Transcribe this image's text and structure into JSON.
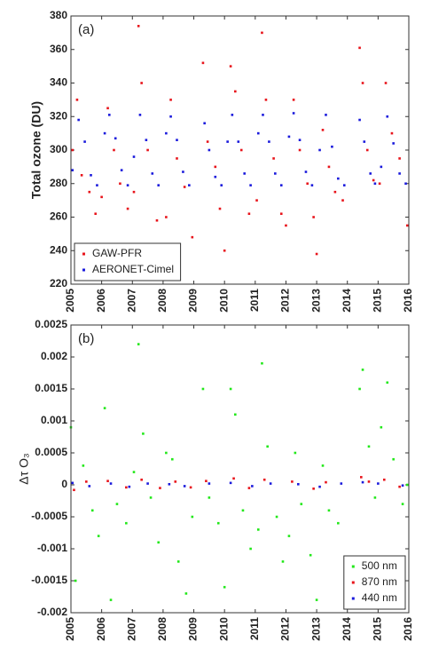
{
  "chart_data": [
    {
      "type": "scatter",
      "annotation": "(a)",
      "ylabel": "Total ozone (DU)",
      "xlim": [
        2005,
        2016
      ],
      "xticks": [
        2005,
        2006,
        2007,
        2008,
        2009,
        2010,
        2011,
        2012,
        2013,
        2014,
        2015,
        2016
      ],
      "ylim": [
        220,
        380
      ],
      "yticks": [
        220,
        240,
        260,
        280,
        300,
        320,
        340,
        360,
        380
      ],
      "legend": "lower left",
      "series": [
        {
          "name": "GAW-PFR",
          "color": "#e8141b",
          "x": [
            2005.05,
            2005.2,
            2005.35,
            2005.6,
            2005.8,
            2006.0,
            2006.2,
            2006.4,
            2006.6,
            2006.85,
            2007.05,
            2007.2,
            2007.3,
            2007.5,
            2007.8,
            2008.1,
            2008.25,
            2008.45,
            2008.7,
            2008.95,
            2009.3,
            2009.45,
            2009.7,
            2009.85,
            2010.0,
            2010.2,
            2010.35,
            2010.55,
            2010.8,
            2011.05,
            2011.22,
            2011.35,
            2011.6,
            2011.85,
            2012.0,
            2012.25,
            2012.45,
            2012.7,
            2012.9,
            2013.0,
            2013.2,
            2013.4,
            2013.6,
            2013.85,
            2014.4,
            2014.5,
            2014.65,
            2014.85,
            2015.05,
            2015.25,
            2015.45,
            2015.7,
            2015.95
          ],
          "values": [
            300,
            330,
            285,
            275,
            262,
            272,
            325,
            300,
            280,
            265,
            275,
            374,
            340,
            300,
            258,
            260,
            330,
            295,
            278,
            248,
            352,
            305,
            290,
            265,
            240,
            350,
            335,
            300,
            262,
            270,
            370,
            330,
            295,
            262,
            255,
            330,
            300,
            280,
            260,
            238,
            312,
            290,
            275,
            270,
            361,
            340,
            300,
            282,
            280,
            340,
            310,
            295,
            255
          ]
        },
        {
          "name": "AERONET-Cimel",
          "color": "#1a1adc",
          "x": [
            2005.05,
            2005.25,
            2005.45,
            2005.65,
            2005.85,
            2006.1,
            2006.25,
            2006.45,
            2006.65,
            2006.85,
            2007.05,
            2007.25,
            2007.45,
            2007.65,
            2007.85,
            2008.1,
            2008.25,
            2008.45,
            2008.65,
            2008.85,
            2009.35,
            2009.5,
            2009.7,
            2009.9,
            2010.1,
            2010.25,
            2010.45,
            2010.65,
            2010.85,
            2011.1,
            2011.25,
            2011.45,
            2011.65,
            2011.85,
            2012.1,
            2012.25,
            2012.45,
            2012.65,
            2012.85,
            2013.1,
            2013.3,
            2013.5,
            2013.7,
            2013.9,
            2014.4,
            2014.55,
            2014.75,
            2014.9,
            2015.1,
            2015.3,
            2015.5,
            2015.7,
            2015.9
          ],
          "values": [
            288,
            318,
            305,
            285,
            279,
            310,
            321,
            307,
            288,
            279,
            296,
            321,
            306,
            286,
            279,
            310,
            320,
            306,
            287,
            279,
            316,
            300,
            284,
            279,
            305,
            321,
            305,
            286,
            279,
            310,
            321,
            305,
            286,
            279,
            308,
            322,
            306,
            287,
            279,
            300,
            321,
            302,
            283,
            279,
            318,
            305,
            286,
            280,
            290,
            320,
            304,
            286,
            280
          ]
        }
      ]
    },
    {
      "type": "scatter",
      "annotation": "(b)",
      "ylabel": "Δτ O₃",
      "xlim": [
        2005,
        2016
      ],
      "xticks": [
        2005,
        2006,
        2007,
        2008,
        2009,
        2010,
        2011,
        2012,
        2013,
        2014,
        2015,
        2016
      ],
      "ylim": [
        -0.002,
        0.0025
      ],
      "yticks": [
        -0.002,
        -0.0015,
        -0.001,
        -0.0005,
        0,
        0.0005,
        0.001,
        0.0015,
        0.002,
        0.0025
      ],
      "legend": "lower right",
      "series": [
        {
          "name": "500 nm",
          "color": "#22e81a",
          "x": [
            2005.0,
            2005.15,
            2005.4,
            2005.7,
            2005.9,
            2006.1,
            2006.3,
            2006.5,
            2006.8,
            2007.05,
            2007.2,
            2007.35,
            2007.6,
            2007.85,
            2008.1,
            2008.3,
            2008.5,
            2008.75,
            2008.95,
            2009.3,
            2009.5,
            2009.8,
            2010.0,
            2010.2,
            2010.35,
            2010.6,
            2010.85,
            2011.1,
            2011.22,
            2011.4,
            2011.7,
            2011.9,
            2012.1,
            2012.3,
            2012.5,
            2012.8,
            2013.0,
            2013.2,
            2013.4,
            2013.7,
            2014.4,
            2014.5,
            2014.7,
            2014.9,
            2015.1,
            2015.3,
            2015.5,
            2015.8,
            2015.95
          ],
          "values": [
            0.0009,
            -0.0015,
            0.0003,
            -0.0004,
            -0.0008,
            0.0012,
            -0.0018,
            -0.0003,
            -0.0006,
            0.0002,
            0.0022,
            0.0008,
            -0.0002,
            -0.0009,
            0.0005,
            0.0004,
            -0.0012,
            -0.0017,
            -0.0005,
            0.0015,
            -0.0002,
            -0.0006,
            -0.0016,
            0.0015,
            0.0011,
            -0.0004,
            -0.001,
            -0.0007,
            0.0019,
            0.0006,
            -0.0005,
            -0.0012,
            -0.0008,
            0.0005,
            -0.0003,
            -0.0011,
            -0.0018,
            0.0003,
            -0.0004,
            -0.0006,
            0.0015,
            0.0018,
            0.0006,
            -0.0002,
            0.0009,
            0.0016,
            0.0004,
            -0.0003,
            0
          ]
        },
        {
          "name": "870 nm",
          "color": "#e8141b",
          "x": [
            2005.1,
            2005.5,
            2006.2,
            2006.8,
            2007.3,
            2007.9,
            2008.4,
            2008.9,
            2009.4,
            2010.3,
            2010.8,
            2011.3,
            2012.2,
            2012.9,
            2013.3,
            2014.45,
            2014.7,
            2015.2,
            2015.7
          ],
          "values": [
            -8e-05,
            5e-05,
            6e-05,
            -4e-05,
            8e-05,
            -5e-05,
            5e-05,
            -4e-05,
            6e-05,
            0.0001,
            -5e-05,
            8e-05,
            5e-05,
            -6e-05,
            4e-05,
            0.00012,
            5e-05,
            8e-05,
            -3e-05
          ]
        },
        {
          "name": "440 nm",
          "color": "#1a1adc",
          "x": [
            2005.05,
            2005.6,
            2006.3,
            2006.9,
            2007.5,
            2008.2,
            2008.7,
            2009.5,
            2010.2,
            2010.9,
            2011.5,
            2012.4,
            2013.1,
            2013.8,
            2014.5,
            2015.0,
            2015.8
          ],
          "values": [
            3e-05,
            -2e-05,
            2e-05,
            -3e-05,
            2e-05,
            1e-05,
            -2e-05,
            2e-05,
            3e-05,
            -2e-05,
            2e-05,
            1e-05,
            -3e-05,
            2e-05,
            4e-05,
            2e-05,
            -1e-05
          ]
        }
      ]
    }
  ]
}
